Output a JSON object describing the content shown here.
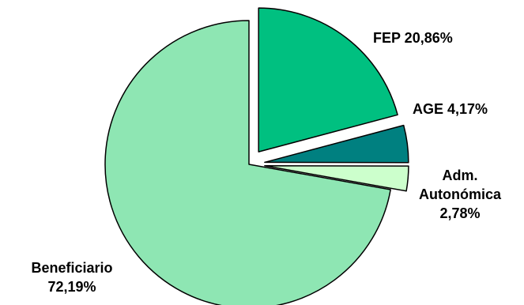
{
  "chart_data": {
    "type": "pie",
    "title": "",
    "slices": [
      {
        "name": "FEP",
        "value": 20.86,
        "label": "FEP 20,86%",
        "color": "#00c080",
        "exploded": true
      },
      {
        "name": "AGE",
        "value": 4.17,
        "label": "AGE 4,17%",
        "color": "#008080",
        "exploded": true
      },
      {
        "name": "Adm. Autonómica",
        "value": 2.78,
        "label_lines": [
          "Adm.",
          "Autonómica",
          "2,78%"
        ],
        "color": "#ccffcc",
        "exploded": true
      },
      {
        "name": "Beneficiario",
        "value": 72.19,
        "label_lines": [
          "Beneficiario",
          "72,19%"
        ],
        "color": "#8ee6b3",
        "exploded": false
      }
    ],
    "legend": "none",
    "slice_outline_color": "#000000"
  }
}
